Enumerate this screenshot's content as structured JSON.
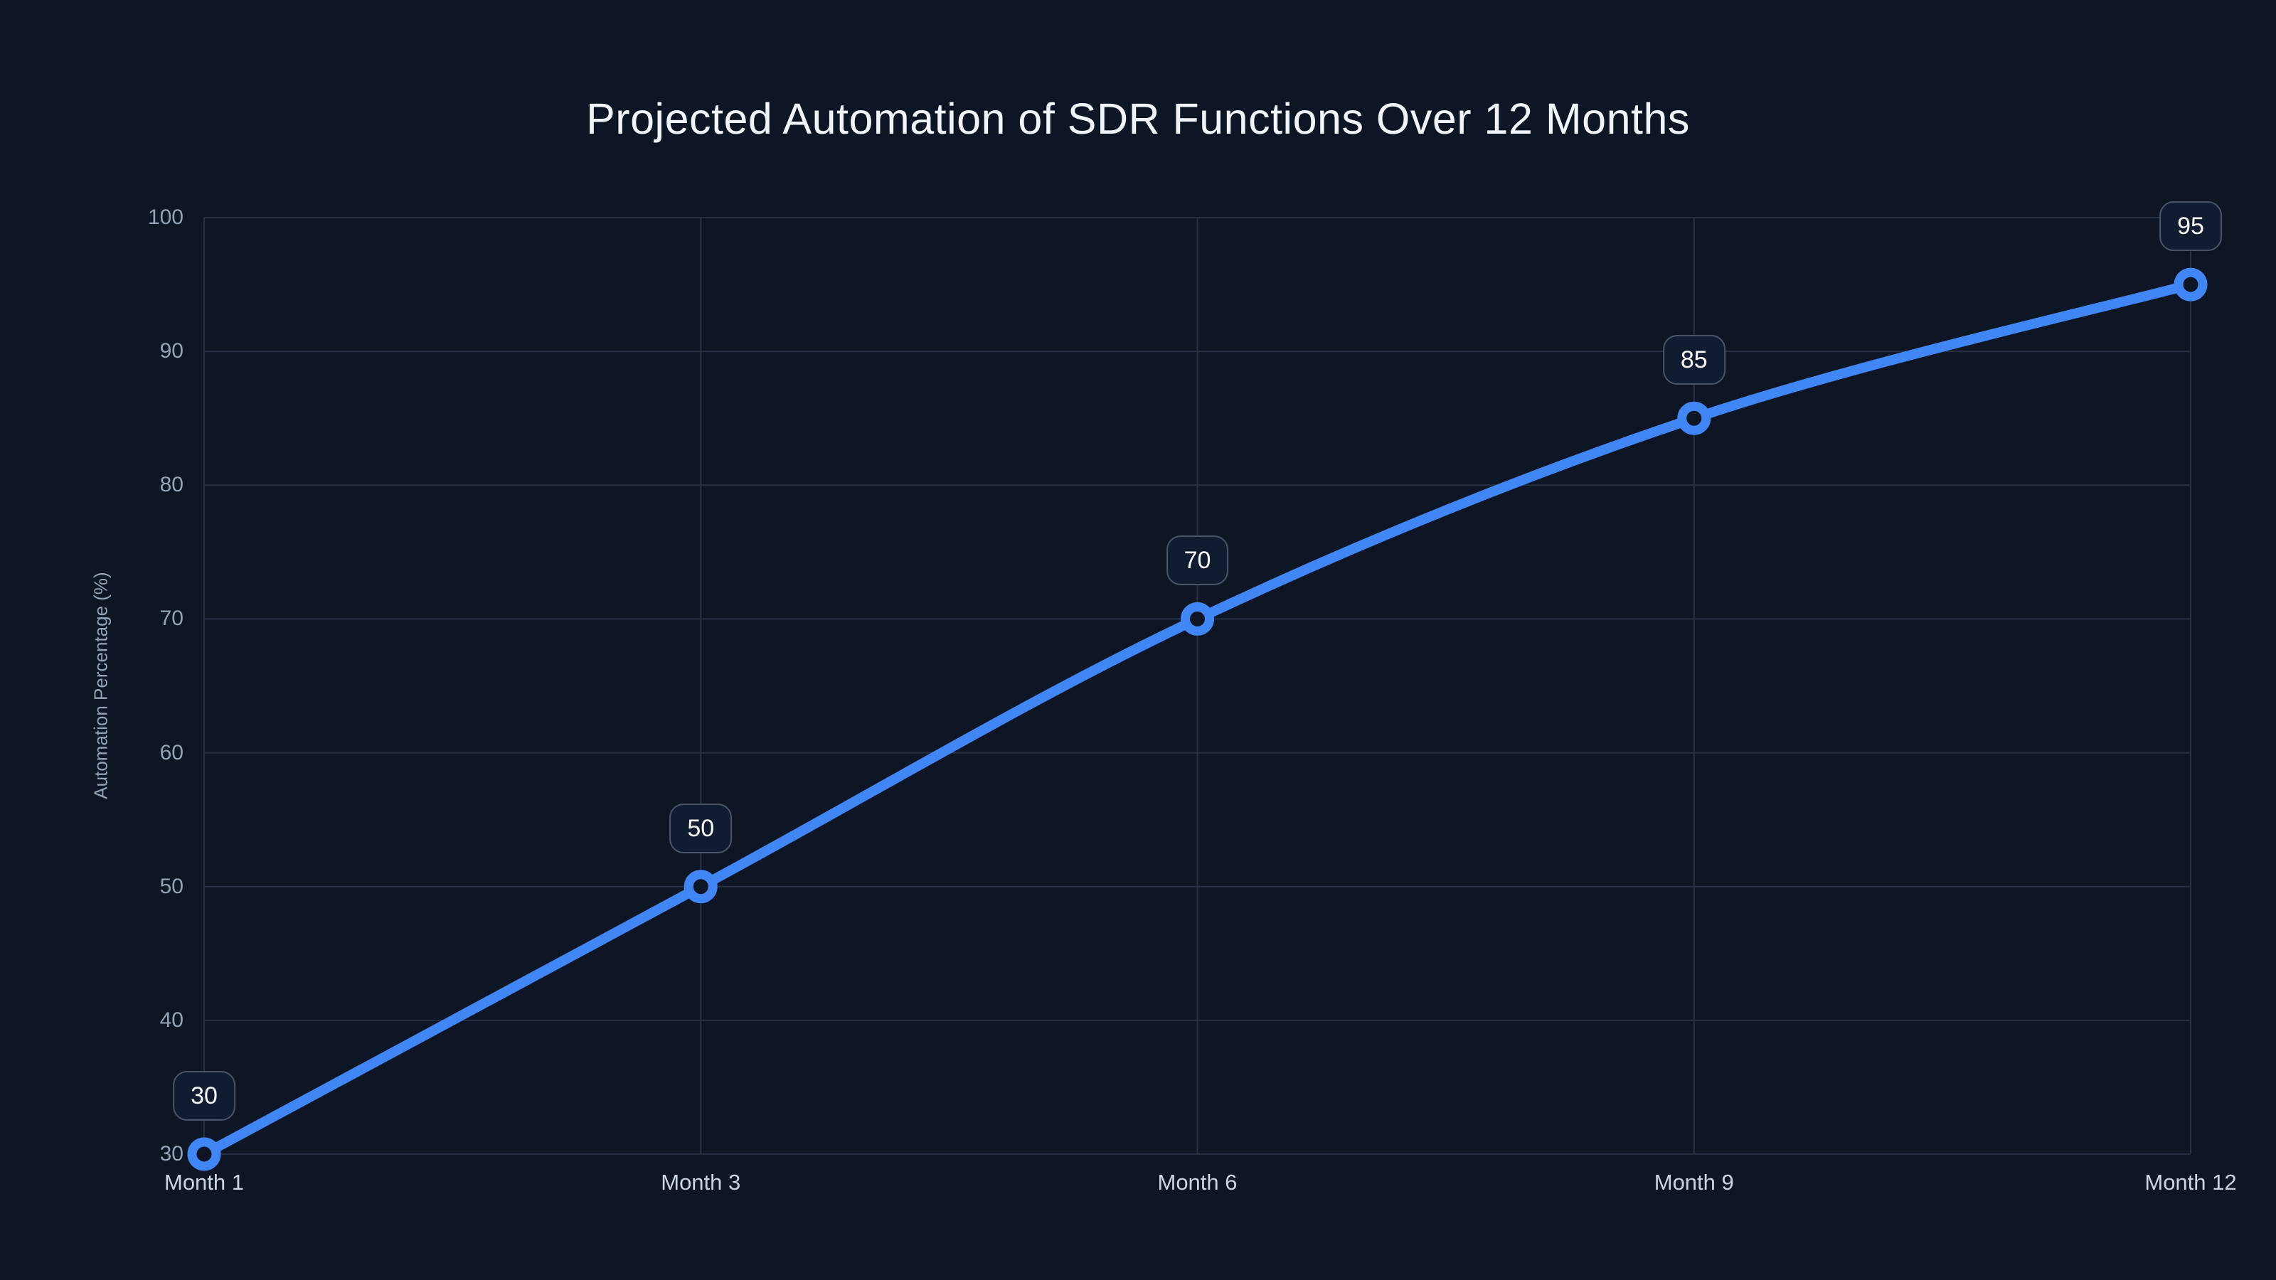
{
  "page": {
    "background_color": "#0e1626"
  },
  "chart_data": {
    "type": "line",
    "title": "Projected Automation of SDR Functions Over 12 Months",
    "xlabel": "",
    "ylabel": "Automation Percentage (%)",
    "categories": [
      "Month 1",
      "Month 3",
      "Month 6",
      "Month 9",
      "Month 12"
    ],
    "series": [
      {
        "name": "Automation Percentage",
        "values": [
          30,
          50,
          70,
          85,
          95
        ]
      }
    ],
    "point_labels": [
      "30",
      "50",
      "70",
      "85",
      "95"
    ],
    "ylim": [
      30,
      100
    ],
    "yticks": [
      30,
      40,
      50,
      60,
      70,
      80,
      90,
      100
    ],
    "grid": true,
    "legend_position": "none",
    "colors": {
      "background": "#0e1626",
      "line": "#4186f5",
      "marker_ring": "#4186f5",
      "marker_fill": "#0e1626",
      "grid": "#273043",
      "tick_text": "#94a3b8",
      "x_tick_text": "#cbd5e1",
      "title_text": "#f1f5f9",
      "label_box_bg": "#121c30",
      "label_box_border": "#4a5469",
      "label_text": "#f8fafc"
    }
  }
}
